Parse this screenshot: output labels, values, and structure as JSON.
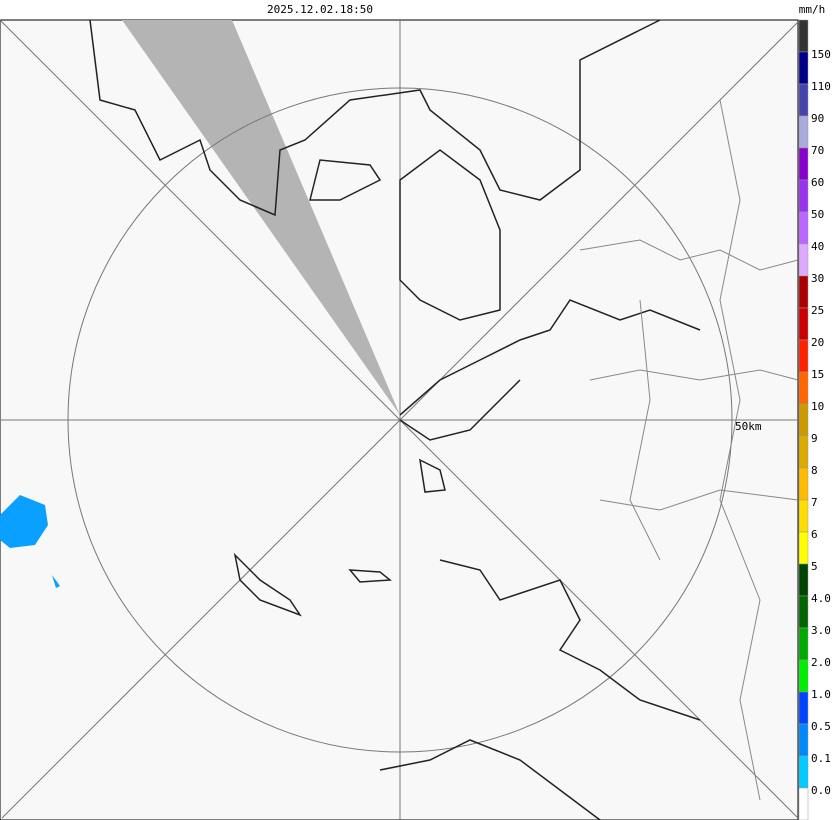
{
  "header": {
    "timestamp": "2025.12.02.18:50",
    "unit": "mm/h"
  },
  "map": {
    "range_label": "50km"
  },
  "legend": {
    "labels": [
      "150",
      "110",
      "90",
      "70",
      "60",
      "50",
      "40",
      "30",
      "25",
      "20",
      "15",
      "10",
      "9",
      "8",
      "7",
      "6",
      "5",
      "4.0",
      "3.0",
      "2.0",
      "1.0",
      "0.5",
      "0.1",
      "0.0"
    ],
    "colors": [
      "#333333",
      "#000088",
      "#4444aa",
      "#aaaadd",
      "#8800cc",
      "#9933ee",
      "#bb66ff",
      "#ddaaff",
      "#aa0000",
      "#cc0000",
      "#ff2200",
      "#ff6600",
      "#cc9900",
      "#ddaa00",
      "#ffbb00",
      "#ffdd00",
      "#ffff00",
      "#004400",
      "#006600",
      "#00aa00",
      "#00ee00",
      "#0044ff",
      "#0088ff",
      "#00ccff",
      "#ffffff"
    ]
  }
}
